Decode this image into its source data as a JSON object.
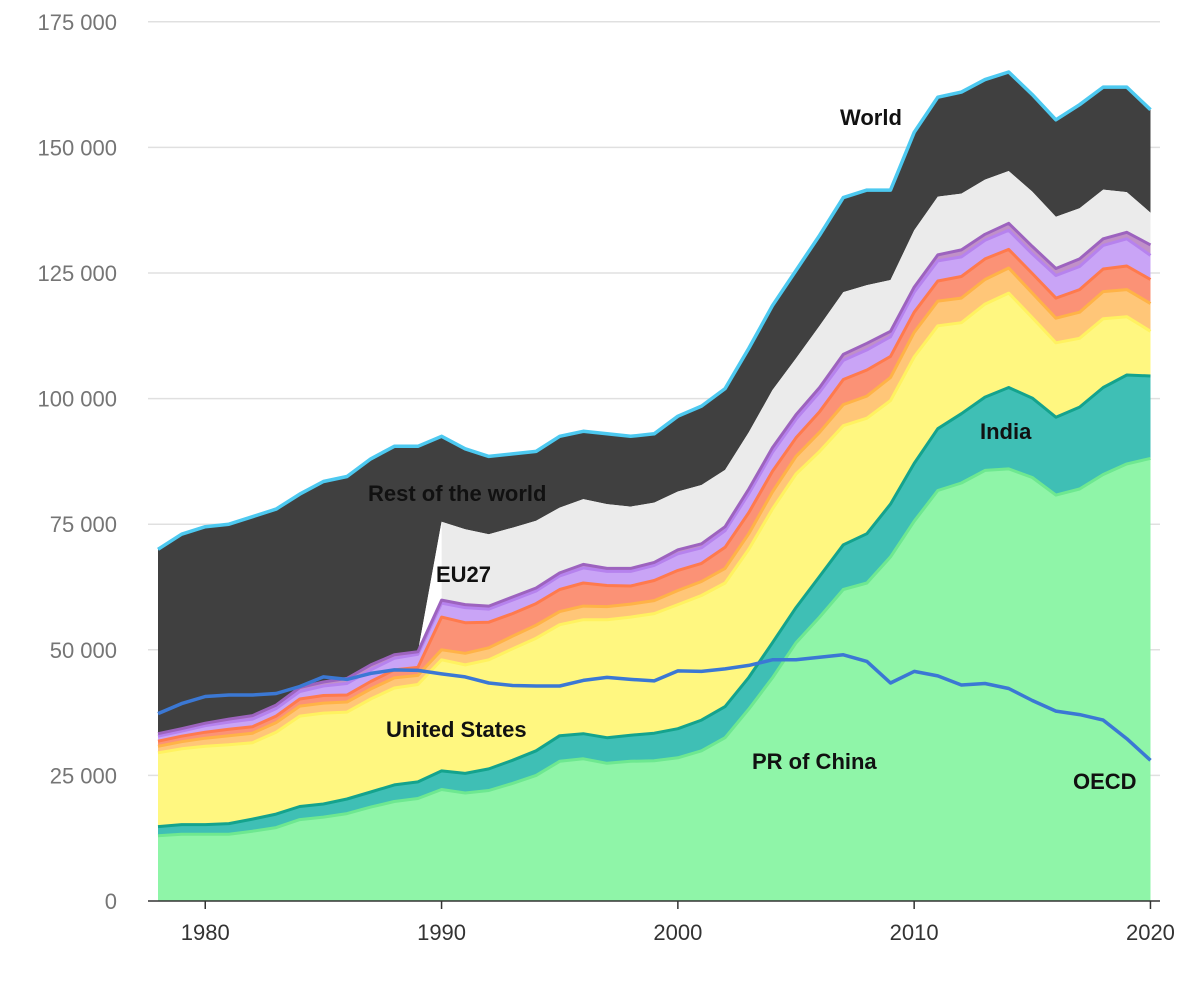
{
  "chart_data": {
    "type": "area",
    "stacked": true,
    "title": "",
    "xlabel": "",
    "ylabel": "",
    "xlim": [
      1978,
      2020
    ],
    "ylim": [
      0,
      175000
    ],
    "yticks": [
      0,
      25000,
      50000,
      75000,
      100000,
      125000,
      150000,
      175000
    ],
    "ytick_labels": [
      "0",
      "25 000",
      "50 000",
      "75 000",
      "100 000",
      "125 000",
      "150 000",
      "175 000"
    ],
    "xticks": [
      1980,
      1990,
      2000,
      2010,
      2020
    ],
    "xtick_labels": [
      "1980",
      "1990",
      "2000",
      "2010",
      "2020"
    ],
    "grid": true,
    "x": [
      1978,
      1979,
      1980,
      1981,
      1982,
      1983,
      1984,
      1985,
      1986,
      1987,
      1988,
      1989,
      1990,
      1991,
      1992,
      1993,
      1994,
      1995,
      1996,
      1997,
      1998,
      1999,
      2000,
      2001,
      2002,
      2003,
      2004,
      2005,
      2006,
      2007,
      2008,
      2009,
      2010,
      2011,
      2012,
      2013,
      2014,
      2015,
      2016,
      2017,
      2018,
      2019,
      2020
    ],
    "series_cumulative": [
      {
        "name": "PR of China",
        "color": "#8ff5a8",
        "line_color": "#6ee890",
        "values": [
          13000,
          13300,
          13300,
          13300,
          13900,
          14600,
          16200,
          16700,
          17400,
          18700,
          19800,
          20400,
          22200,
          21500,
          22000,
          23400,
          25000,
          27800,
          28300,
          27400,
          27800,
          27900,
          28500,
          29900,
          32500,
          38200,
          44400,
          51400,
          56500,
          62000,
          63300,
          68500,
          75600,
          81700,
          83200,
          85700,
          86000,
          84300,
          80800,
          82000,
          84900,
          87000,
          88100
        ]
      },
      {
        "name": "India",
        "color": "#3fbfb5",
        "line_color": "#14a38d",
        "values": [
          14800,
          15200,
          15200,
          15400,
          16300,
          17300,
          18800,
          19300,
          20300,
          21700,
          23100,
          23700,
          25900,
          25400,
          26300,
          28000,
          29900,
          32900,
          33300,
          32500,
          33000,
          33400,
          34300,
          36000,
          38700,
          44500,
          51400,
          58400,
          64600,
          70900,
          73100,
          79000,
          87100,
          94000,
          97000,
          100300,
          102200,
          100100,
          96300,
          98300,
          102200,
          104700,
          104500
        ]
      },
      {
        "name": "United States",
        "color": "#fff780",
        "line_color": "#fff260",
        "values": [
          29500,
          30300,
          30800,
          31100,
          31500,
          33600,
          36800,
          37400,
          37600,
          40200,
          42400,
          43100,
          48000,
          47000,
          48000,
          50200,
          52300,
          55000,
          56000,
          56000,
          56500,
          57200,
          59000,
          60800,
          63300,
          70000,
          78000,
          85000,
          89500,
          94600,
          96100,
          99600,
          108300,
          114500,
          115100,
          118800,
          121000,
          116100,
          111100,
          112000,
          115900,
          116300,
          113400
        ]
      },
      {
        "name": "",
        "color": "#ffc678",
        "line_color": "#ffb347",
        "values": [
          30800,
          31700,
          32400,
          32900,
          33400,
          35500,
          38800,
          39400,
          39600,
          42200,
          44400,
          44900,
          50000,
          49300,
          50400,
          52700,
          54900,
          57600,
          58700,
          58600,
          59100,
          59800,
          61800,
          63600,
          66200,
          73100,
          81400,
          88500,
          93300,
          98800,
          100500,
          104200,
          113200,
          119400,
          120000,
          123700,
          126000,
          121000,
          116000,
          117200,
          121300,
          121700,
          118900
        ]
      },
      {
        "name": "",
        "color": "#fb9276",
        "line_color": "#ff7a4d",
        "values": [
          31800,
          32800,
          33600,
          34200,
          34700,
          36800,
          40200,
          40900,
          41000,
          43700,
          46000,
          46500,
          56500,
          55400,
          55500,
          57200,
          59200,
          62000,
          63300,
          62800,
          62700,
          63800,
          65800,
          67200,
          70400,
          77300,
          85500,
          92200,
          97400,
          103800,
          105700,
          108400,
          117200,
          123400,
          124300,
          127800,
          129700,
          124900,
          120000,
          121700,
          125800,
          126400,
          123700
        ]
      },
      {
        "name": "",
        "color": "#c9a4f6",
        "line_color": "#b682ee",
        "values": [
          32800,
          33800,
          34900,
          35600,
          36200,
          38300,
          41700,
          42800,
          43300,
          46000,
          48300,
          49100,
          59300,
          58400,
          58100,
          59900,
          61700,
          64700,
          66300,
          65600,
          65600,
          66800,
          69100,
          70300,
          73700,
          81100,
          89300,
          95900,
          101300,
          107600,
          109700,
          112300,
          121200,
          127400,
          128200,
          131500,
          133500,
          128800,
          124500,
          126300,
          130500,
          131800,
          128500
        ]
      },
      {
        "name": "",
        "color": "#c090c8",
        "line_color": "#9d63bf",
        "values": [
          33300,
          34300,
          35400,
          36200,
          36900,
          39000,
          42500,
          43600,
          44300,
          47000,
          49000,
          49600,
          59900,
          59000,
          58700,
          60500,
          62300,
          65300,
          67000,
          66200,
          66200,
          67400,
          69900,
          71100,
          74500,
          82000,
          90200,
          96800,
          102200,
          108800,
          111000,
          113400,
          122200,
          128600,
          129600,
          132700,
          134900,
          130300,
          125900,
          127800,
          131800,
          133100,
          130600
        ]
      },
      {
        "name": "EU27",
        "color": "#ebebeb",
        "line_color": "#ebebeb",
        "values": [
          null,
          null,
          null,
          null,
          null,
          null,
          null,
          null,
          null,
          null,
          null,
          null,
          75500,
          74000,
          73000,
          74300,
          75700,
          78300,
          80000,
          79000,
          78500,
          79300,
          81500,
          82800,
          85800,
          93300,
          101700,
          108000,
          114500,
          121200,
          122600,
          123600,
          133500,
          140200,
          140800,
          143600,
          145300,
          141200,
          136200,
          137900,
          141600,
          141100,
          137000
        ]
      },
      {
        "name": "World",
        "color": "#404040",
        "line_color": "#4dc9f0",
        "values": [
          70000,
          73000,
          74500,
          75000,
          76500,
          78000,
          81000,
          83500,
          84500,
          88000,
          90500,
          90500,
          92500,
          90000,
          88500,
          89000,
          89500,
          92500,
          93500,
          93000,
          92500,
          93000,
          96500,
          98500,
          102000,
          110000,
          118500,
          125500,
          132500,
          140000,
          141500,
          141500,
          153000,
          160000,
          161000,
          163500,
          165000,
          160500,
          155500,
          158500,
          162000,
          162000,
          157500
        ]
      }
    ],
    "lines": [
      {
        "name": "OECD",
        "color": "#3b78d4",
        "values": [
          37300,
          39300,
          40700,
          41000,
          41000,
          41300,
          42700,
          44600,
          44100,
          45300,
          46000,
          45900,
          45200,
          44600,
          43400,
          42900,
          42800,
          42800,
          43900,
          44500,
          44100,
          43800,
          45800,
          45700,
          46200,
          46900,
          48000,
          48000,
          48500,
          49000,
          47700,
          43400,
          45700,
          44800,
          43000,
          43300,
          42300,
          39900,
          37800,
          37100,
          36000,
          32300,
          28000
        ]
      }
    ],
    "annotations": [
      "World",
      "Rest of the world",
      "EU27",
      "United States",
      "India",
      "PR of China",
      "OECD"
    ]
  }
}
